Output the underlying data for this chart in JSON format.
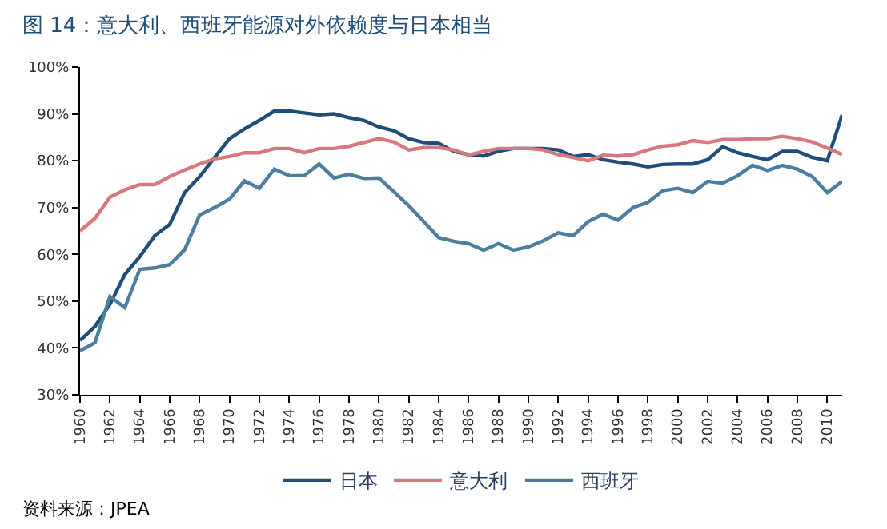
{
  "chart_data": {
    "type": "line",
    "title": "图 14：意大利、西班牙能源对外依赖度与日本相当",
    "x": [
      1960,
      1961,
      1962,
      1963,
      1964,
      1965,
      1966,
      1967,
      1968,
      1969,
      1970,
      1971,
      1972,
      1973,
      1974,
      1975,
      1976,
      1977,
      1978,
      1979,
      1980,
      1981,
      1982,
      1983,
      1984,
      1985,
      1986,
      1987,
      1988,
      1989,
      1990,
      1991,
      1992,
      1993,
      1994,
      1995,
      1996,
      1997,
      1998,
      1999,
      2000,
      2001,
      2002,
      2003,
      2004,
      2005,
      2006,
      2007,
      2008,
      2009,
      2010,
      2011
    ],
    "series": [
      {
        "name": "日本",
        "color": "#1f4e79",
        "values": [
          41.6,
          44.6,
          49.3,
          55.7,
          59.5,
          64,
          66.4,
          73.2,
          76.6,
          80.7,
          84.7,
          86.8,
          88.6,
          90.6,
          90.6,
          90.2,
          89.8,
          90,
          89.2,
          88.6,
          87.2,
          86.4,
          84.7,
          83.9,
          83.7,
          82,
          81.3,
          81,
          82,
          82.6,
          82.6,
          82.6,
          82.3,
          80.9,
          81.3,
          80.2,
          79.7,
          79.3,
          78.7,
          79.2,
          79.3,
          79.3,
          80.2,
          83,
          81.7,
          80.9,
          80.2,
          82,
          82,
          80.7,
          80,
          89.8
        ]
      },
      {
        "name": "意大利",
        "color": "#d9777f",
        "values": [
          65,
          67.7,
          72.2,
          73.8,
          74.9,
          74.9,
          76.6,
          78,
          79.3,
          80.4,
          80.9,
          81.7,
          81.7,
          82.6,
          82.6,
          81.7,
          82.6,
          82.6,
          83.1,
          83.9,
          84.7,
          84,
          82.3,
          82.8,
          82.8,
          82.3,
          81.2,
          82,
          82.6,
          82.6,
          82.6,
          82.3,
          81.3,
          80.7,
          80,
          81.2,
          81,
          81.3,
          82.3,
          83.1,
          83.4,
          84.3,
          83.9,
          84.5,
          84.5,
          84.7,
          84.7,
          85.2,
          84.7,
          84,
          82.7,
          81.3
        ]
      },
      {
        "name": "西班牙",
        "color": "#4a7fa0",
        "values": [
          39.4,
          41.1,
          51,
          48.6,
          56.8,
          57.1,
          57.8,
          61,
          68.4,
          70,
          71.8,
          75.7,
          74.1,
          78.2,
          76.8,
          76.8,
          79.3,
          76.3,
          77.1,
          76.2,
          76.3,
          73.4,
          70.4,
          67,
          63.6,
          62.8,
          62.3,
          60.9,
          62.3,
          60.9,
          61.6,
          62.9,
          64.6,
          64,
          67,
          68.6,
          67.3,
          70,
          71.1,
          73.6,
          74.1,
          73.2,
          75.6,
          75.2,
          76.8,
          79,
          77.9,
          79,
          78.2,
          76.6,
          73.2,
          75.6
        ]
      }
    ],
    "xlim": [
      1960,
      2011
    ],
    "xticks": [
      1960,
      1962,
      1964,
      1966,
      1968,
      1970,
      1972,
      1974,
      1976,
      1978,
      1980,
      1982,
      1984,
      1986,
      1988,
      1990,
      1992,
      1994,
      1996,
      1998,
      2000,
      2002,
      2004,
      2006,
      2008,
      2010
    ],
    "ylim": [
      30,
      100
    ],
    "yticks": [
      {
        "value": 30,
        "label": "30%"
      },
      {
        "value": 40,
        "label": "40%"
      },
      {
        "value": 50,
        "label": "50%"
      },
      {
        "value": 60,
        "label": "60%"
      },
      {
        "value": 70,
        "label": "70%"
      },
      {
        "value": 80,
        "label": "80%"
      },
      {
        "value": 90,
        "label": "90%"
      },
      {
        "value": 100,
        "label": "100%"
      }
    ],
    "legend": "bottom",
    "marker": "none",
    "line_style": "solid",
    "annotations": [
      "资料来源：JPEA"
    ]
  }
}
